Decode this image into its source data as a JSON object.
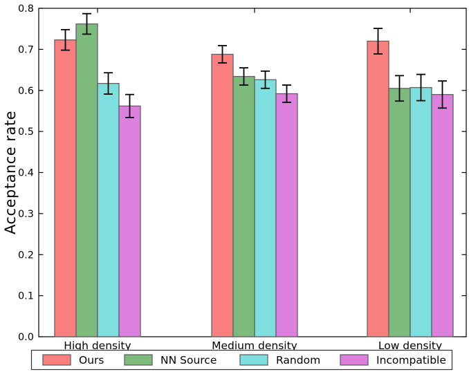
{
  "chart_data": {
    "type": "bar",
    "title": "",
    "xlabel": "",
    "ylabel": "Acceptance rate",
    "categories": [
      "High density",
      "Medium density",
      "Low density"
    ],
    "series": [
      {
        "name": "Ours",
        "color": "#fa8080",
        "values": [
          0.723,
          0.688,
          0.72
        ],
        "errors": [
          0.025,
          0.021,
          0.031
        ]
      },
      {
        "name": "NN Source",
        "color": "#7dbb7d",
        "values": [
          0.762,
          0.634,
          0.605
        ],
        "errors": [
          0.025,
          0.021,
          0.031
        ]
      },
      {
        "name": "Random",
        "color": "#7fdfdf",
        "values": [
          0.617,
          0.626,
          0.607
        ],
        "errors": [
          0.026,
          0.021,
          0.032
        ]
      },
      {
        "name": "Incompatible",
        "color": "#dd80dd",
        "values": [
          0.562,
          0.592,
          0.59
        ],
        "errors": [
          0.028,
          0.021,
          0.033
        ]
      }
    ],
    "ylim": [
      0.0,
      0.8
    ],
    "yticks": [
      0.0,
      0.1,
      0.2,
      0.3,
      0.4,
      0.5,
      0.6,
      0.7,
      0.8
    ],
    "grid": false,
    "legend_position": "bottom",
    "bar_edge_color": "#606060",
    "error_bar_color": "#000000",
    "axis_color": "#000000",
    "plot_bg_color": "#ffffff"
  }
}
